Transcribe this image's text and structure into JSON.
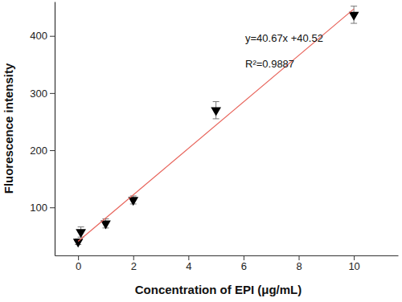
{
  "chart_data": {
    "type": "scatter",
    "x_label": "Concentration of EPI (μg/mL)",
    "y_label": "Fluorescence intensity",
    "annotations": [
      "y=40.67x +40.52",
      "R²=0.9887"
    ],
    "series": [
      {
        "type": "scatter",
        "color": "#000000",
        "marker": "triangle-down",
        "x": [
          0,
          0.1,
          1,
          2,
          5,
          10
        ],
        "values": [
          40,
          57,
          72,
          113,
          270,
          437
        ],
        "errors": [
          5,
          9,
          8,
          7,
          15,
          15
        ]
      },
      {
        "type": "line",
        "color": "#e8635a",
        "line_style": "solid",
        "x": [
          0,
          10
        ],
        "values": [
          40.52,
          447.22
        ]
      }
    ],
    "xlim": [
      -0.85,
      11.6
    ],
    "xticks": [
      0,
      2,
      4,
      6,
      8,
      10
    ],
    "ylim": [
      16,
      460
    ],
    "yticks": [
      100,
      200,
      300,
      400
    ],
    "grid": false
  }
}
